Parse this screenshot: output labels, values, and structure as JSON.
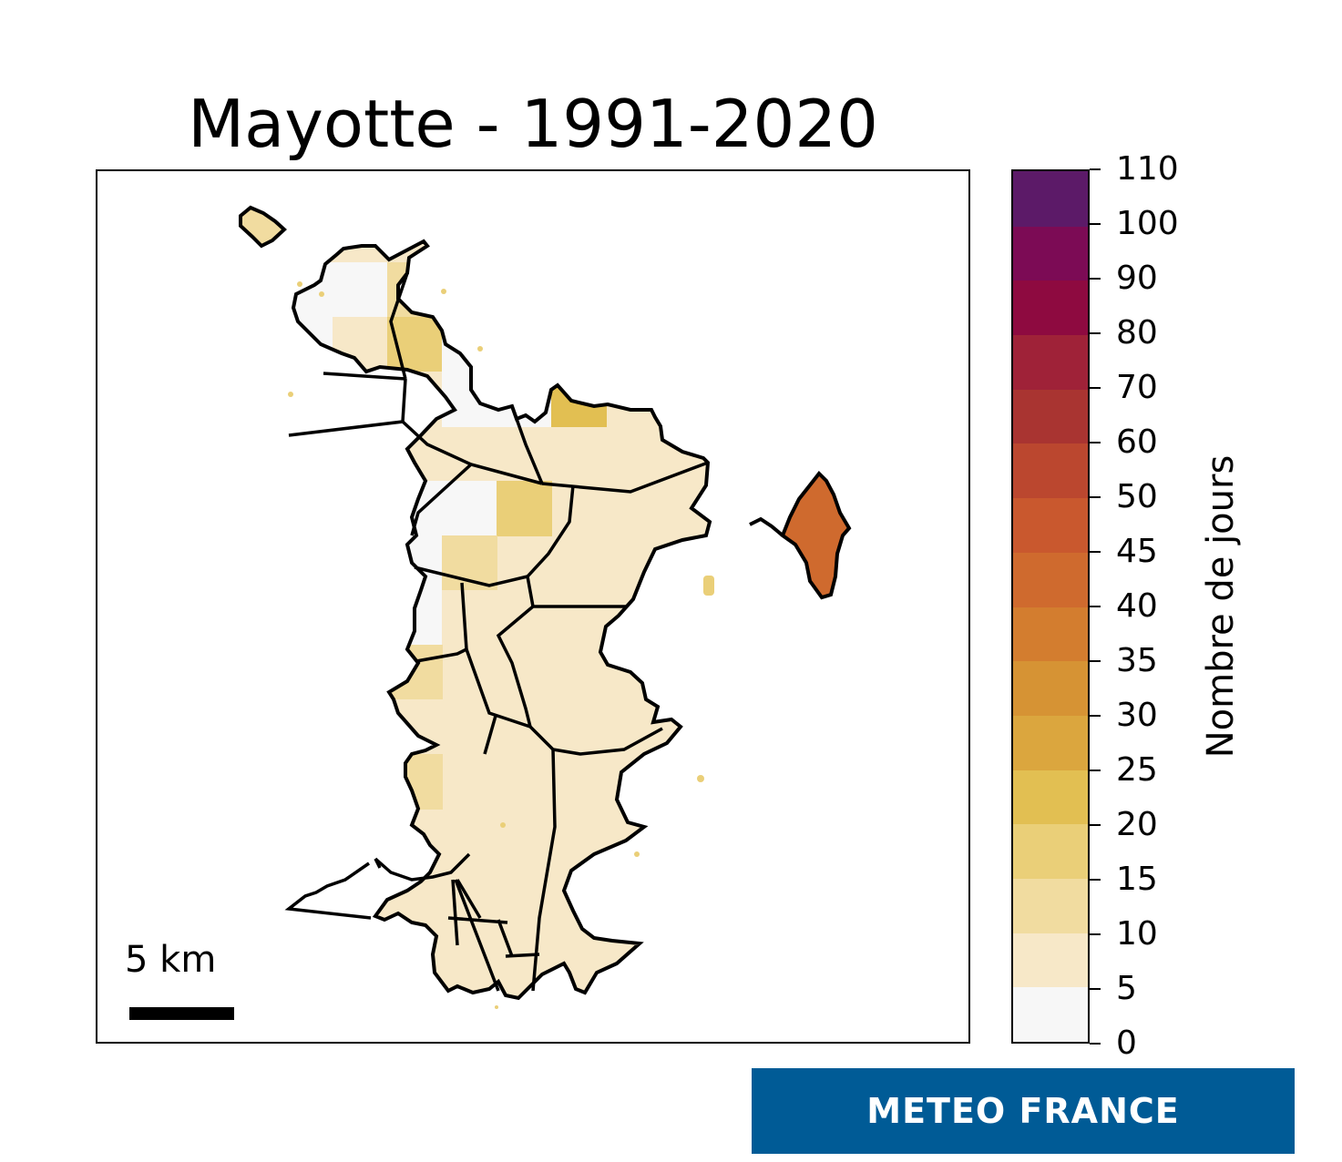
{
  "title": "Mayotte - 1991-2020",
  "scale": {
    "label": "5 km"
  },
  "colorbar": {
    "label": "Nombre de jours",
    "ticks": [
      "0",
      "5",
      "10",
      "15",
      "20",
      "25",
      "30",
      "35",
      "40",
      "45",
      "50",
      "60",
      "70",
      "80",
      "90",
      "100",
      "110"
    ],
    "colors": [
      "#f7f7f7",
      "#f7e8c8",
      "#f1dca0",
      "#eacf78",
      "#e2bf52",
      "#dba63e",
      "#d69334",
      "#d37d2f",
      "#cf6a2e",
      "#c9582e",
      "#bb472f",
      "#a93431",
      "#9f2238",
      "#8e0a40",
      "#7c0b55",
      "#5c1a68",
      "#36216a"
    ]
  },
  "logo": "METEO FRANCE",
  "map": {
    "regions": [
      {
        "x": 0,
        "y": 0,
        "value": 2
      },
      {
        "x": 1,
        "y": 0,
        "value": 2
      },
      {
        "x": 2,
        "y": 0,
        "value": 12
      },
      {
        "x": 0,
        "y": 1,
        "value": 1
      },
      {
        "x": 1,
        "y": 1,
        "value": 8
      },
      {
        "x": 2,
        "y": 1,
        "value": 18
      },
      {
        "x": 3,
        "y": 1,
        "value": 2
      },
      {
        "x": 4,
        "y": 1,
        "value": 28
      },
      {
        "x": 5,
        "y": 1,
        "value": 9
      },
      {
        "x": 0,
        "y": 2,
        "value": 8
      },
      {
        "x": 1,
        "y": 2,
        "value": 12
      },
      {
        "x": 2,
        "y": 2,
        "value": 8
      },
      {
        "x": 3,
        "y": 2,
        "value": 1
      },
      {
        "x": 4,
        "y": 2,
        "value": 2
      },
      {
        "x": 5,
        "y": 2,
        "value": 24
      },
      {
        "x": 0,
        "y": 3,
        "value": 3
      },
      {
        "x": 1,
        "y": 3,
        "value": 14
      },
      {
        "x": 2,
        "y": 3,
        "value": 2
      },
      {
        "x": 3,
        "y": 3,
        "value": 2
      },
      {
        "x": 4,
        "y": 3,
        "value": 18
      },
      {
        "x": 0,
        "y": 4,
        "value": 16
      },
      {
        "x": 1,
        "y": 4,
        "value": 3
      },
      {
        "x": 2,
        "y": 4,
        "value": 2
      },
      {
        "x": 3,
        "y": 4,
        "value": 14
      },
      {
        "x": 0,
        "y": 5,
        "value": 2
      },
      {
        "x": 1,
        "y": 5,
        "value": 3
      },
      {
        "x": 2,
        "y": 5,
        "value": 2
      },
      {
        "x": 3,
        "y": 5,
        "value": 8
      },
      {
        "x": 0,
        "y": 6,
        "value": 12
      },
      {
        "x": 1,
        "y": 6,
        "value": 8
      },
      {
        "x": 2,
        "y": 6,
        "value": 12
      },
      {
        "x": 0,
        "y": 7,
        "value": 14
      },
      {
        "x": 1,
        "y": 7,
        "value": 3
      },
      {
        "x": 2,
        "y": 7,
        "value": 8
      },
      {
        "x": 0,
        "y": 8,
        "value": 12
      },
      {
        "x": 1,
        "y": 8,
        "value": 28
      },
      {
        "x": 2,
        "y": 8,
        "value": 12
      },
      {
        "x": 6,
        "y": 4,
        "value": 42
      },
      {
        "x": -1,
        "y": -2,
        "value": 12
      }
    ]
  }
}
